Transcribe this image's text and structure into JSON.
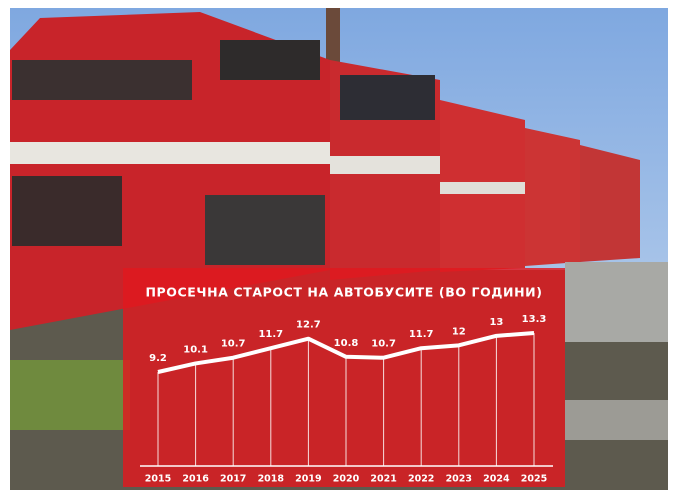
{
  "chart_data": {
    "type": "line",
    "title": "ПРОСЕЧНА СТАРОСТ НА АВТОБУСИТЕ (ВО ГОДИНИ)",
    "categories": [
      "2015",
      "2016",
      "2017",
      "2018",
      "2019",
      "2020",
      "2021",
      "2022",
      "2023",
      "2024",
      "2025"
    ],
    "values": [
      9.2,
      10.1,
      10.7,
      11.7,
      12.7,
      10.8,
      10.7,
      11.7,
      12,
      13,
      13.3
    ],
    "color": "#ffffff"
  }
}
